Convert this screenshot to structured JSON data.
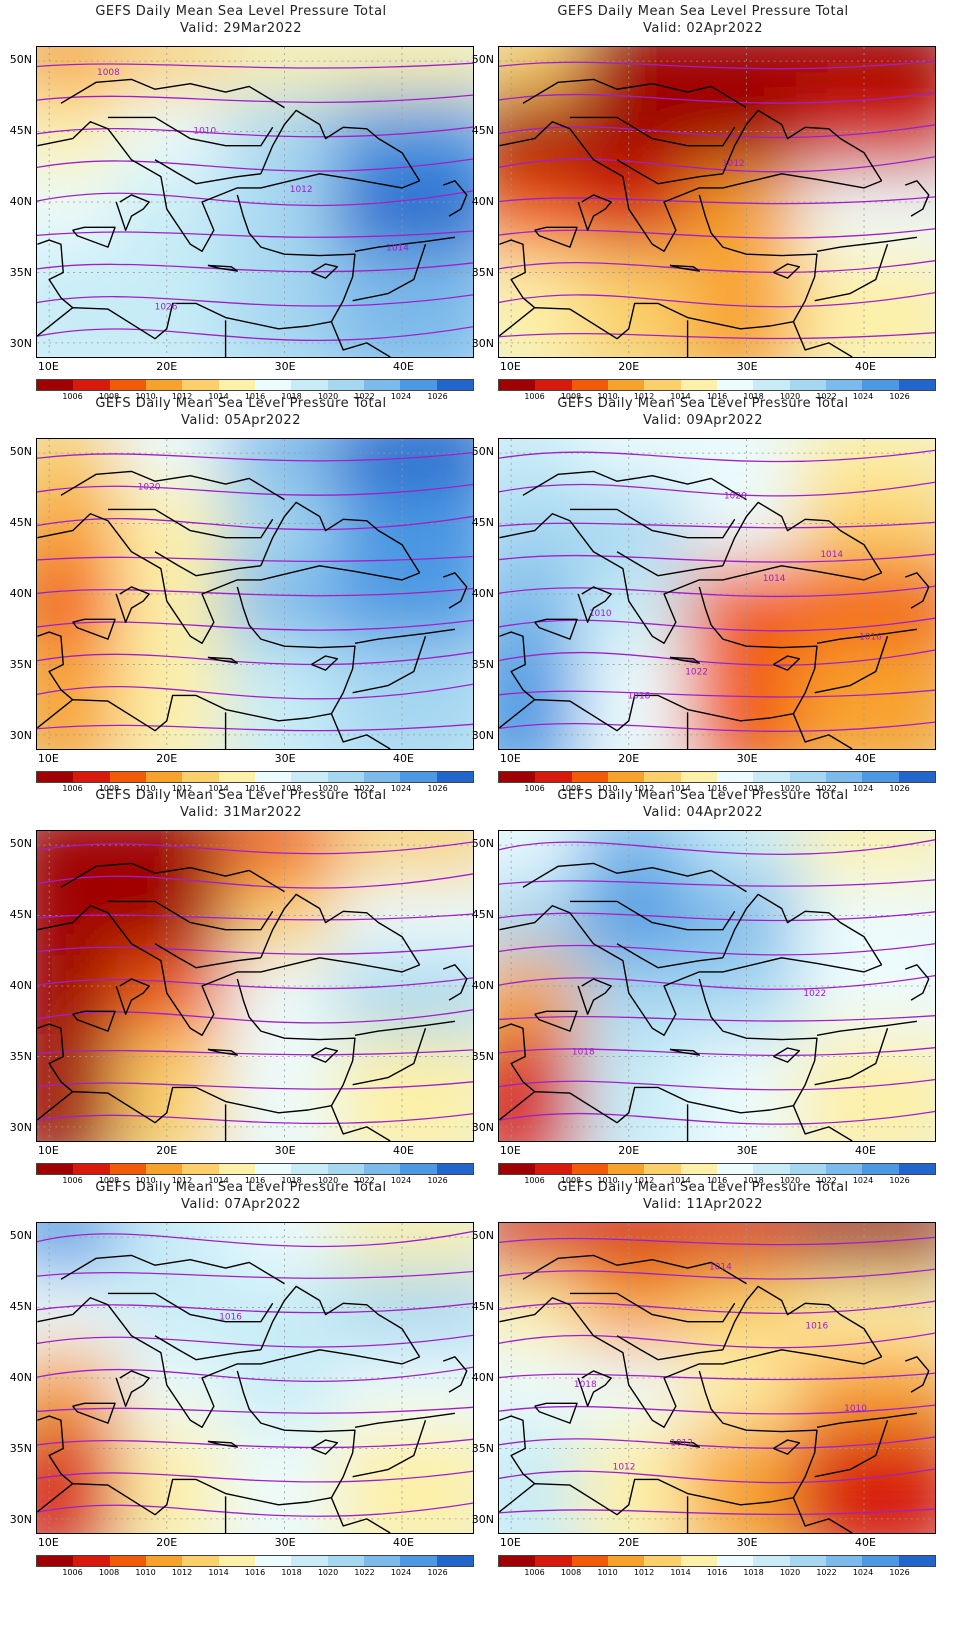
{
  "product": "GEFS Daily Mean Sea Level Pressure Total",
  "valid_prefix": "Valid:",
  "lat_labels": [
    "50N",
    "45N",
    "40N",
    "35N",
    "30N"
  ],
  "lon_labels": [
    "10E",
    "20E",
    "30E",
    "40E"
  ],
  "colorbar": {
    "labels": [
      "1006",
      "1008",
      "1010",
      "1012",
      "1014",
      "1016",
      "1018",
      "1020",
      "1022",
      "1024",
      "1026"
    ],
    "colors": [
      "#a00000",
      "#d81a0d",
      "#f25a08",
      "#f8a22e",
      "#fbd06a",
      "#fdf0a8",
      "#ecfbfd",
      "#c7ecf7",
      "#a6d7f1",
      "#7bbaea",
      "#4c98e3",
      "#2266cc"
    ]
  },
  "panels": [
    {
      "title": "GEFS Daily Mean Sea Level Pressure Total",
      "valid": "Valid: 29Mar2022",
      "contour_labels": [
        "1008",
        "1010",
        "1012",
        "1014",
        "1026"
      ],
      "fill": [
        [
          "#f8a22e",
          "#fbd06a",
          "#fdf0a8",
          "#fdf0a8"
        ],
        [
          "#fdf0a8",
          "#ecfbfd",
          "#a6d7f1",
          "#4c98e3"
        ],
        [
          "#ecfbfd",
          "#c7ecf7",
          "#a6d7f1",
          "#2266cc"
        ],
        [
          "#c7ecf7",
          "#c7ecf7",
          "#a6d7f1",
          "#7bbaea"
        ]
      ]
    },
    {
      "title": "GEFS Daily Mean Sea Level Pressure Total",
      "valid": "Valid: 05Apr2022",
      "contour_labels": [
        "1020"
      ],
      "fill": [
        [
          "#fbd06a",
          "#ecfbfd",
          "#7bbaea",
          "#2266cc"
        ],
        [
          "#f8a22e",
          "#fdf0a8",
          "#a6d7f1",
          "#4c98e3"
        ],
        [
          "#f25a08",
          "#fdf0a8",
          "#7bbaea",
          "#4c98e3"
        ],
        [
          "#f8a22e",
          "#fdf0a8",
          "#c7ecf7",
          "#a6d7f1"
        ]
      ]
    },
    {
      "title": "GEFS Daily Mean Sea Level Pressure Total",
      "valid": "Valid: 31Mar2022",
      "contour_labels": [],
      "fill": [
        [
          "#a00000",
          "#a00000",
          "#f25a08",
          "#fbd06a"
        ],
        [
          "#a00000",
          "#a00000",
          "#fbd06a",
          "#ecfbfd"
        ],
        [
          "#a00000",
          "#f25a08",
          "#ecfbfd",
          "#a6d7f1"
        ],
        [
          "#a00000",
          "#fbd06a",
          "#ecfbfd",
          "#fdf0a8"
        ]
      ]
    },
    {
      "title": "GEFS Daily Mean Sea Level Pressure Total",
      "valid": "Valid: 07Apr2022",
      "contour_labels": [
        "1016"
      ],
      "fill": [
        [
          "#4c98e3",
          "#c7ecf7",
          "#ecfbfd",
          "#fdf0a8"
        ],
        [
          "#ecfbfd",
          "#c7ecf7",
          "#c7ecf7",
          "#a6d7f1"
        ],
        [
          "#f8a22e",
          "#ecfbfd",
          "#c7ecf7",
          "#ecfbfd"
        ],
        [
          "#d81a0d",
          "#fdf0a8",
          "#ecfbfd",
          "#fdf0a8"
        ]
      ]
    },
    {
      "title": "GEFS Daily Mean Sea Level Pressure Total",
      "valid": "Valid: 02Apr2022",
      "contour_labels": [
        "1012"
      ],
      "fill": [
        [
          "#fbd06a",
          "#a00000",
          "#a00000",
          "#a00000"
        ],
        [
          "#a00000",
          "#a00000",
          "#a00000",
          "#d81a0d"
        ],
        [
          "#f25a08",
          "#d81a0d",
          "#f8a22e",
          "#ecfbfd"
        ],
        [
          "#fdf0a8",
          "#fbd06a",
          "#f8a22e",
          "#fdf0a8"
        ]
      ]
    },
    {
      "title": "GEFS Daily Mean Sea Level Pressure Total",
      "valid": "Valid: 09Apr2022",
      "contour_labels": [
        "1014",
        "1016",
        "1018",
        "1020",
        "1014",
        "1010",
        "1022"
      ],
      "fill": [
        [
          "#c7ecf7",
          "#ecfbfd",
          "#ecfbfd",
          "#fdf0a8"
        ],
        [
          "#a6d7f1",
          "#a6d7f1",
          "#ecfbfd",
          "#fbd06a"
        ],
        [
          "#7bbaea",
          "#c7ecf7",
          "#f25a08",
          "#f25a08"
        ],
        [
          "#4c98e3",
          "#ecfbfd",
          "#f25a08",
          "#f8a22e"
        ]
      ]
    },
    {
      "title": "GEFS Daily Mean Sea Level Pressure Total",
      "valid": "Valid: 04Apr2022",
      "contour_labels": [
        "1022",
        "1018"
      ],
      "fill": [
        [
          "#ecfbfd",
          "#7bbaea",
          "#c7ecf7",
          "#fdf0a8"
        ],
        [
          "#a6d7f1",
          "#4c98e3",
          "#7bbaea",
          "#ecfbfd"
        ],
        [
          "#f8a22e",
          "#a6d7f1",
          "#a6d7f1",
          "#ecfbfd"
        ],
        [
          "#d81a0d",
          "#c7ecf7",
          "#ecfbfd",
          "#fdf0a8"
        ]
      ]
    },
    {
      "title": "GEFS Daily Mean Sea Level Pressure Total",
      "valid": "Valid: 11Apr2022",
      "contour_labels": [
        "1010",
        "1012",
        "1014",
        "1016",
        "1018",
        "1012"
      ],
      "fill": [
        [
          "#d81a0d",
          "#d81a0d",
          "#d81a0d",
          "#a00000"
        ],
        [
          "#fdf0a8",
          "#f8a22e",
          "#fbd06a",
          "#fdf0a8"
        ],
        [
          "#ecfbfd",
          "#ecfbfd",
          "#fdf0a8",
          "#f8a22e"
        ],
        [
          "#c7ecf7",
          "#fdf0a8",
          "#f8a22e",
          "#d81a0d"
        ]
      ]
    }
  ]
}
